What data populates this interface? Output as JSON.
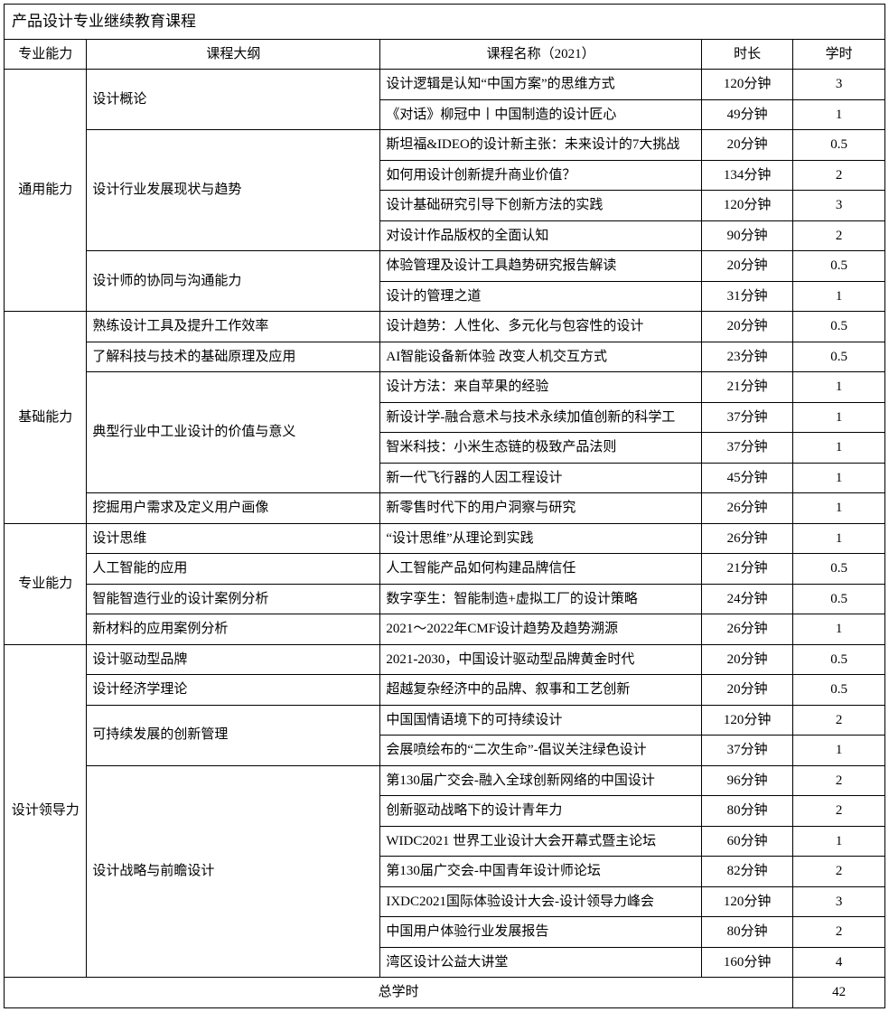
{
  "title": "产品设计专业继续教育课程",
  "headers": {
    "ability": "专业能力",
    "outline": "课程大纲",
    "course": "课程名称（2021）",
    "duration": "时长",
    "credit": "学时"
  },
  "total_label": "总学时",
  "total_value": "42",
  "rows": [
    {
      "ability": "通用能力",
      "ability_rowspan": 8,
      "outline": "设计概论",
      "outline_rowspan": 2,
      "course": "设计逻辑是认知“中国方案”的思维方式",
      "duration": "120分钟",
      "credit": "3"
    },
    {
      "course": "《对话》柳冠中丨中国制造的设计匠心",
      "duration": "49分钟",
      "credit": "1"
    },
    {
      "outline": "设计行业发展现状与趋势",
      "outline_rowspan": 4,
      "course": "斯坦福&IDEO的设计新主张：未来设计的7大挑战",
      "duration": "20分钟",
      "credit": "0.5"
    },
    {
      "course": "如何用设计创新提升商业价值？",
      "duration": "134分钟",
      "credit": "2"
    },
    {
      "course": "设计基础研究引导下创新方法的实践",
      "duration": "120分钟",
      "credit": "3"
    },
    {
      "course": "对设计作品版权的全面认知",
      "duration": "90分钟",
      "credit": "2"
    },
    {
      "outline": "设计师的协同与沟通能力",
      "outline_rowspan": 2,
      "course": "体验管理及设计工具趋势研究报告解读",
      "duration": "20分钟",
      "credit": "0.5"
    },
    {
      "course": "设计的管理之道",
      "duration": "31分钟",
      "credit": "1"
    },
    {
      "ability": "基础能力",
      "ability_rowspan": 7,
      "outline": "熟练设计工具及提升工作效率",
      "outline_rowspan": 1,
      "course": "设计趋势：人性化、多元化与包容性的设计",
      "duration": "20分钟",
      "credit": "0.5"
    },
    {
      "outline": "了解科技与技术的基础原理及应用",
      "outline_rowspan": 1,
      "course": "AI智能设备新体验 改变人机交互方式",
      "duration": "23分钟",
      "credit": "0.5"
    },
    {
      "outline": "典型行业中工业设计的价值与意义",
      "outline_rowspan": 4,
      "course": "设计方法：来自苹果的经验",
      "duration": "21分钟",
      "credit": "1"
    },
    {
      "course": "新设计学-融合意术与技术永续加值创新的科学工",
      "duration": "37分钟",
      "credit": "1"
    },
    {
      "course": "智米科技：小米生态链的极致产品法则",
      "duration": "37分钟",
      "credit": "1"
    },
    {
      "course": "新一代飞行器的人因工程设计",
      "duration": "45分钟",
      "credit": "1"
    },
    {
      "outline": "挖掘用户需求及定义用户画像",
      "outline_rowspan": 1,
      "course": "新零售时代下的用户洞察与研究",
      "duration": "26分钟",
      "credit": "1"
    },
    {
      "ability": "专业能力",
      "ability_rowspan": 4,
      "outline": "设计思维",
      "outline_rowspan": 1,
      "course": "“设计思维”从理论到实践",
      "duration": "26分钟",
      "credit": "1"
    },
    {
      "outline": "人工智能的应用",
      "outline_rowspan": 1,
      "course": "人工智能产品如何构建品牌信任",
      "duration": "21分钟",
      "credit": "0.5"
    },
    {
      "outline": "智能智造行业的设计案例分析",
      "outline_rowspan": 1,
      "course": "数字孪生：智能制造+虚拟工厂的设计策略",
      "duration": "24分钟",
      "credit": "0.5"
    },
    {
      "outline": "新材料的应用案例分析",
      "outline_rowspan": 1,
      "course": "2021～2022年CMF设计趋势及趋势溯源",
      "duration": "26分钟",
      "credit": "1"
    },
    {
      "ability": "设计领导力",
      "ability_rowspan": 11,
      "outline": "设计驱动型品牌",
      "outline_rowspan": 1,
      "course": "2021-2030，中国设计驱动型品牌黄金时代",
      "duration": "20分钟",
      "credit": "0.5"
    },
    {
      "outline": "设计经济学理论",
      "outline_rowspan": 1,
      "course": "超越复杂经济中的品牌、叙事和工艺创新",
      "duration": "20分钟",
      "credit": "0.5"
    },
    {
      "outline": "可持续发展的创新管理",
      "outline_rowspan": 2,
      "course": "中国国情语境下的可持续设计",
      "duration": "120分钟",
      "credit": "2"
    },
    {
      "course": "会展喷绘布的“二次生命”-倡议关注绿色设计",
      "duration": "37分钟",
      "credit": "1"
    },
    {
      "outline": "设计战略与前瞻设计",
      "outline_rowspan": 7,
      "course": "第130届广交会-融入全球创新网络的中国设计",
      "duration": "96分钟",
      "credit": "2"
    },
    {
      "course": "创新驱动战略下的设计青年力",
      "duration": "80分钟",
      "credit": "2"
    },
    {
      "course": "WIDC2021 世界工业设计大会开幕式暨主论坛",
      "duration": "60分钟",
      "credit": "1"
    },
    {
      "course": "第130届广交会-中国青年设计师论坛",
      "duration": "82分钟",
      "credit": "2"
    },
    {
      "course": "IXDC2021国际体验设计大会-设计领导力峰会",
      "duration": "120分钟",
      "credit": "3"
    },
    {
      "course": "中国用户体验行业发展报告",
      "duration": "80分钟",
      "credit": "2"
    },
    {
      "course": "湾区设计公益大讲堂",
      "duration": "160分钟",
      "credit": "4"
    }
  ]
}
